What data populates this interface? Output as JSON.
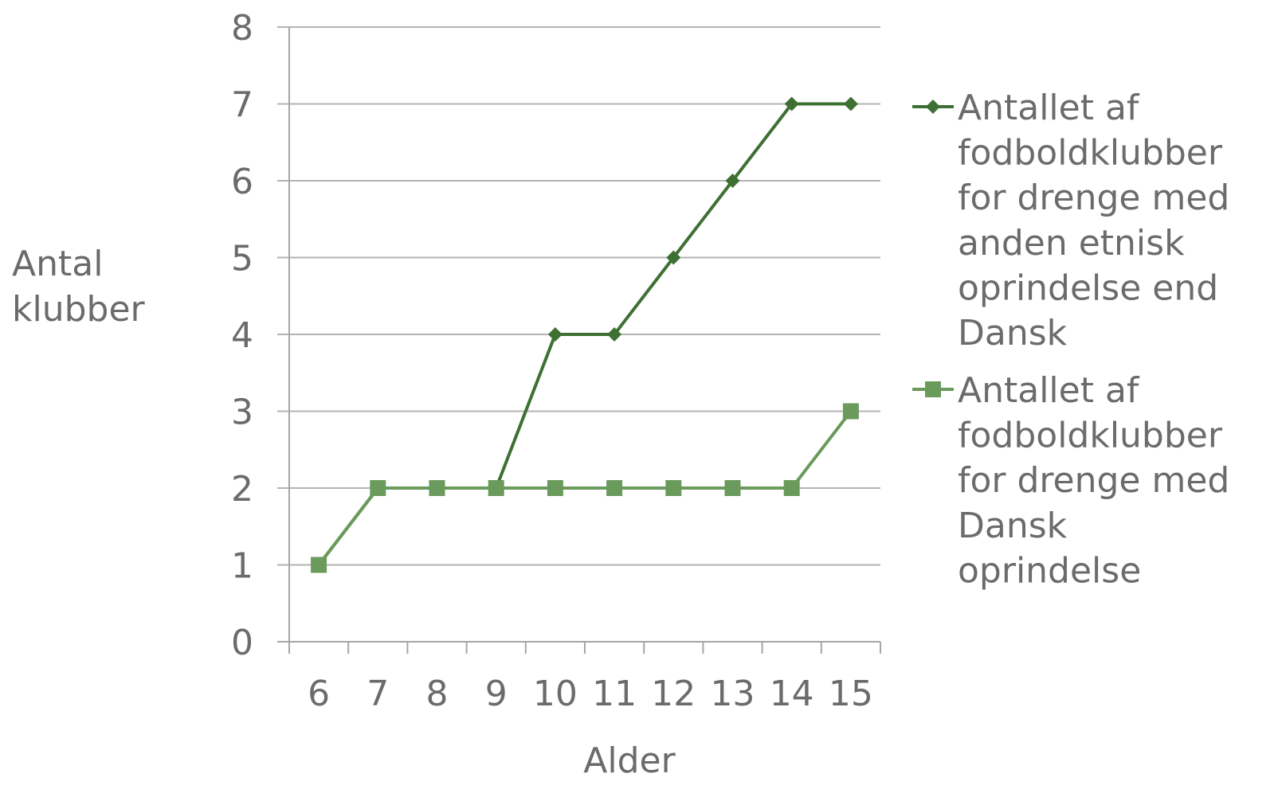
{
  "chart_data": {
    "type": "line",
    "title": "",
    "xlabel": "Alder",
    "ylabel": [
      "Antal",
      "klubber"
    ],
    "categories": [
      "6",
      "7",
      "8",
      "9",
      "10",
      "11",
      "12",
      "13",
      "14",
      "15"
    ],
    "ylim": [
      0,
      8
    ],
    "yticks": [
      "0",
      "1",
      "2",
      "3",
      "4",
      "5",
      "6",
      "7",
      "8"
    ],
    "grid": true,
    "legend_position": "right",
    "series": [
      {
        "name": "Antallet af fodboldklubber for drenge med anden etnisk oprindelse end Dansk",
        "legend_lines": [
          "Antallet af",
          "fodboldklubber",
          "for drenge med",
          "anden etnisk",
          "oprindelse end",
          "Dansk"
        ],
        "values": [
          1,
          2,
          2,
          2,
          4,
          4,
          5,
          6,
          7,
          7
        ],
        "color": "#3f7033",
        "marker": "diamond"
      },
      {
        "name": "Antallet af fodboldklubber for drenge med Dansk oprindelse",
        "legend_lines": [
          "Antallet af",
          "fodboldklubber",
          "for drenge med",
          "Dansk",
          "oprindelse"
        ],
        "values": [
          1,
          2,
          2,
          2,
          2,
          2,
          2,
          2,
          2,
          3
        ],
        "color": "#6a9a5c",
        "marker": "square"
      }
    ]
  },
  "colors": {
    "gridline": "#b3b3b3",
    "axis": "#a6a6a6",
    "text": "#6b6b6b"
  }
}
